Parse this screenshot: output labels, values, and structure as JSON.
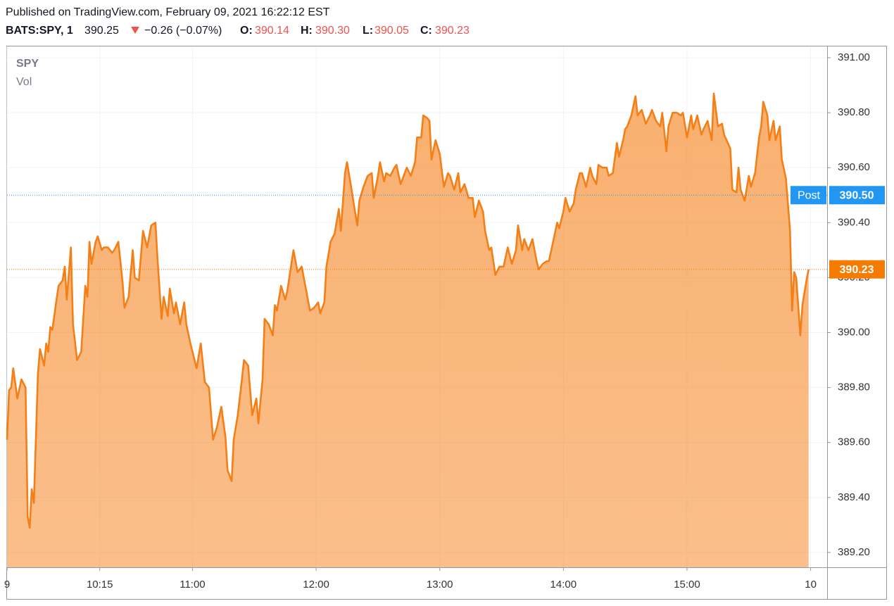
{
  "header": {
    "published": "Published on TradingView.com, February 09, 2021 16:22:12 EST",
    "symbol": "BATS:SPY, 1",
    "last": "390.25",
    "change": "−0.26 (−0.07%)",
    "ohlc": [
      {
        "label": "O:",
        "value": "390.14"
      },
      {
        "label": "H:",
        "value": "390.30"
      },
      {
        "label": "L:",
        "value": "390.05"
      },
      {
        "label": "C:",
        "value": "390.23"
      }
    ]
  },
  "chart_data": {
    "type": "area",
    "legend": [
      "SPY",
      "Vol"
    ],
    "x": [
      0,
      1,
      2,
      3,
      5,
      7,
      9,
      10,
      11,
      12,
      13,
      15,
      16,
      18,
      19,
      20,
      21,
      22,
      24,
      25,
      27,
      28,
      29,
      31,
      32,
      34,
      36,
      38,
      39,
      40,
      41,
      43,
      44,
      46,
      47,
      49,
      51,
      52,
      54,
      56,
      57,
      59,
      61,
      62,
      64,
      66,
      68,
      70,
      72,
      73,
      75,
      76,
      78,
      79,
      81,
      82,
      84,
      86,
      87,
      89,
      91,
      92,
      94,
      96,
      98,
      100,
      102,
      104,
      106,
      107,
      109,
      110,
      112,
      114,
      115,
      117,
      119,
      121,
      122,
      124,
      125,
      127,
      129,
      130,
      131,
      133,
      135,
      136,
      138,
      139,
      141,
      143,
      144,
      147,
      149,
      151,
      152,
      154,
      155,
      157,
      159,
      161,
      162,
      164,
      165,
      167,
      168,
      170,
      171,
      173,
      175,
      177,
      178,
      180,
      181,
      183,
      184,
      186,
      188,
      189,
      191,
      193,
      194,
      196,
      198,
      199,
      201,
      202,
      204,
      205,
      206,
      208,
      210,
      212,
      214,
      215,
      217,
      219,
      220,
      222,
      224,
      226,
      227,
      229,
      231,
      232,
      234,
      235,
      237,
      239,
      241,
      243,
      245,
      247,
      248,
      250,
      251,
      253,
      255,
      257,
      258,
      260,
      262,
      263,
      265,
      267,
      268,
      270,
      271,
      273,
      275,
      276,
      278,
      279,
      281,
      283,
      284,
      286,
      287,
      289,
      291,
      292,
      294,
      296,
      297,
      299,
      300,
      301,
      303,
      305,
      306,
      308,
      310,
      312,
      313,
      315,
      317,
      318,
      320,
      321,
      323,
      325,
      327,
      328,
      330,
      332,
      333,
      335,
      337,
      338,
      340,
      342,
      343,
      345,
      347,
      348,
      351,
      352,
      354,
      355,
      356,
      358,
      360,
      361,
      363,
      365,
      366,
      367,
      369,
      370,
      372,
      373,
      375,
      376,
      378,
      380,
      381,
      382,
      383,
      385,
      386,
      388,
      389
    ],
    "series": [
      {
        "name": "SPY",
        "color": "#f57f17",
        "values": [
          389.61,
          389.79,
          389.8,
          389.87,
          389.76,
          389.83,
          389.8,
          389.33,
          389.29,
          389.43,
          389.38,
          389.85,
          389.94,
          389.88,
          389.96,
          389.93,
          390.02,
          390.01,
          390.12,
          390.17,
          390.19,
          390.24,
          390.12,
          390.31,
          390.03,
          389.9,
          389.93,
          390.17,
          390.13,
          390.33,
          390.25,
          390.33,
          390.35,
          390.3,
          390.31,
          390.31,
          390.29,
          390.3,
          390.33,
          390.19,
          390.09,
          390.13,
          390.3,
          390.2,
          390.19,
          390.37,
          390.31,
          390.39,
          390.4,
          390.27,
          390.05,
          390.13,
          390.06,
          390.16,
          390.07,
          390.11,
          390.03,
          390.11,
          390.03,
          389.96,
          389.9,
          389.87,
          389.96,
          389.82,
          389.8,
          389.61,
          389.66,
          389.73,
          389.62,
          389.5,
          389.46,
          389.61,
          389.7,
          389.83,
          389.9,
          389.88,
          389.7,
          389.76,
          389.67,
          389.83,
          390.05,
          390.03,
          389.99,
          390.1,
          390.08,
          390.17,
          390.12,
          390.15,
          390.25,
          390.3,
          390.22,
          390.24,
          390.2,
          390.08,
          390.09,
          390.11,
          390.07,
          390.11,
          390.24,
          390.33,
          390.36,
          390.45,
          390.37,
          390.58,
          390.62,
          390.53,
          390.48,
          390.39,
          390.48,
          390.53,
          390.57,
          390.58,
          390.49,
          390.57,
          390.62,
          390.55,
          390.58,
          390.57,
          390.6,
          390.61,
          390.54,
          390.58,
          390.6,
          390.57,
          390.62,
          390.71,
          390.71,
          390.79,
          390.78,
          390.77,
          390.63,
          390.7,
          390.65,
          390.53,
          390.58,
          390.57,
          390.52,
          390.58,
          390.51,
          390.54,
          390.49,
          390.49,
          390.42,
          390.48,
          390.44,
          390.37,
          390.3,
          390.31,
          390.21,
          390.24,
          390.24,
          390.31,
          390.25,
          390.3,
          390.39,
          390.3,
          390.34,
          390.3,
          390.34,
          390.26,
          390.23,
          390.25,
          390.26,
          390.26,
          390.33,
          390.4,
          390.38,
          390.44,
          390.49,
          390.44,
          390.47,
          390.52,
          390.58,
          390.58,
          390.53,
          390.6,
          390.57,
          390.54,
          390.61,
          390.6,
          390.6,
          390.57,
          390.58,
          390.69,
          390.64,
          390.7,
          390.74,
          390.75,
          390.79,
          390.86,
          390.79,
          390.81,
          390.76,
          390.79,
          390.81,
          390.77,
          390.75,
          390.8,
          390.66,
          390.75,
          390.8,
          390.8,
          390.79,
          390.8,
          390.71,
          390.79,
          390.74,
          390.79,
          390.72,
          390.74,
          390.77,
          390.7,
          390.87,
          390.75,
          390.76,
          390.72,
          390.67,
          390.52,
          390.51,
          390.6,
          390.52,
          390.48,
          390.57,
          390.53,
          390.58,
          390.71,
          390.75,
          390.84,
          390.79,
          390.7,
          390.77,
          390.7,
          390.75,
          390.63,
          390.56,
          390.37,
          390.08,
          390.22,
          390.2,
          389.99,
          390.1,
          390.19,
          390.23
        ]
      }
    ],
    "xlim": [
      0,
      398
    ],
    "xticks": [
      {
        "value": 0,
        "label": "9"
      },
      {
        "value": 45,
        "label": "10:15"
      },
      {
        "value": 90,
        "label": "11:00"
      },
      {
        "value": 150,
        "label": "12:00"
      },
      {
        "value": 210,
        "label": "13:00"
      },
      {
        "value": 270,
        "label": "14:00"
      },
      {
        "value": 330,
        "label": "15:00"
      },
      {
        "value": 390,
        "label": "10"
      }
    ],
    "ylim": [
      389.146,
      391.041
    ],
    "yticks": [
      {
        "value": 389.2,
        "label": "389.20"
      },
      {
        "value": 389.4,
        "label": "389.40"
      },
      {
        "value": 389.6,
        "label": "389.60"
      },
      {
        "value": 389.8,
        "label": "389.80"
      },
      {
        "value": 390,
        "label": "390.00"
      },
      {
        "value": 390.2,
        "label": "390.20"
      },
      {
        "value": 390.4,
        "label": "390.40"
      },
      {
        "value": 390.6,
        "label": "390.60"
      },
      {
        "value": 390.8,
        "label": "390.80"
      },
      {
        "value": 391,
        "label": "391.00"
      }
    ],
    "grid": true,
    "price_lines": [
      {
        "name": "Post",
        "value": 390.5,
        "label": "390.50",
        "color": "#2196f3"
      },
      {
        "value": 390.23,
        "color": "#f57c00"
      }
    ]
  }
}
